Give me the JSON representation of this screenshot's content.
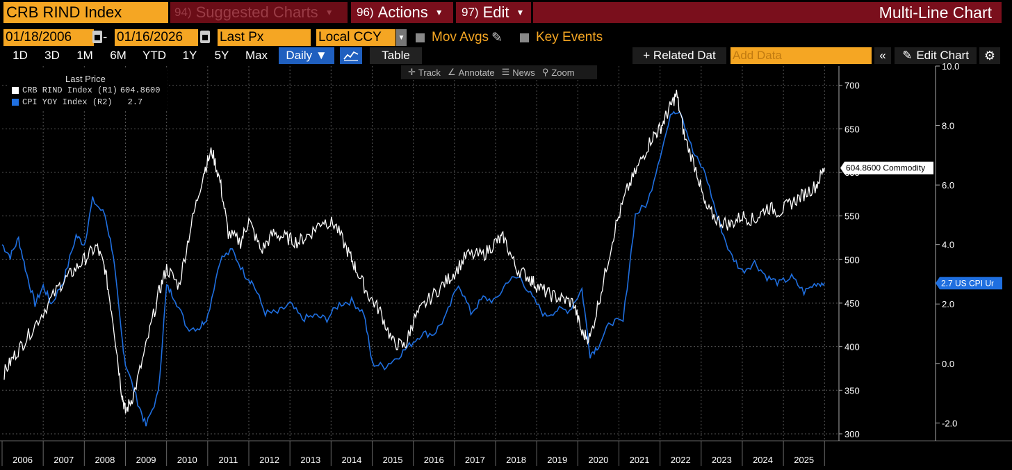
{
  "header": {
    "ticker": "CRB RIND Index",
    "suggested_num": "94)",
    "suggested_label": "Suggested Charts",
    "actions_num": "96)",
    "actions_label": "Actions",
    "edit_num": "97)",
    "edit_label": "Edit",
    "title": "Multi-Line Chart"
  },
  "controls": {
    "start_date": "01/18/2006",
    "dash": "-",
    "end_date": "01/16/2026",
    "field": "Last Px",
    "currency": "Local CCY",
    "mov_avgs": "Mov Avgs",
    "key_events": "Key Events"
  },
  "timeframes": [
    "1D",
    "3D",
    "1M",
    "6M",
    "YTD",
    "1Y",
    "5Y",
    "Max"
  ],
  "toolbar": {
    "daily": "Daily ▼",
    "table": "Table",
    "related": "+ Related Dat",
    "add_data_placeholder": "Add Data",
    "collapse": "«",
    "edit_chart": "Edit Chart",
    "gear": "⚙"
  },
  "tools": {
    "track": "Track",
    "annotate": "Annotate",
    "news": "News",
    "zoom": "Zoom"
  },
  "legend": {
    "title": "Last Price",
    "rows": [
      {
        "label": "CRB RIND Index  (R1)",
        "value": "604.8600",
        "color": "#ffffff"
      },
      {
        "label": "CPI YOY Index  (R2)",
        "value": "2.7",
        "color": "#1f6fe0"
      }
    ]
  },
  "chart_data": {
    "type": "line",
    "x_axis_years": [
      "2006",
      "2007",
      "2008",
      "2009",
      "2010",
      "2011",
      "2012",
      "2013",
      "2014",
      "2015",
      "2016",
      "2017",
      "2018",
      "2019",
      "2020",
      "2021",
      "2022",
      "2023",
      "2024",
      "2025"
    ],
    "y_left_range": [
      292,
      722
    ],
    "y_left_ticks": [
      "300",
      "350",
      "400",
      "450",
      "500",
      "550",
      "600",
      "650",
      "700"
    ],
    "y_right_range": [
      -2.6,
      10.0
    ],
    "y_right_ticks": [
      "-2.0",
      "0.0",
      "2.0",
      "4.0",
      "6.0",
      "8.0",
      "10.0"
    ],
    "series": [
      {
        "name": "CRB RIND Index",
        "color": "#ffffff",
        "last_label": "604.8600 Commodity",
        "x": [
          2006.05,
          2006.3,
          2006.6,
          2007.0,
          2007.4,
          2007.7,
          2008.0,
          2008.3,
          2008.5,
          2008.7,
          2008.9,
          2009.0,
          2009.2,
          2009.5,
          2009.8,
          2010.0,
          2010.3,
          2010.6,
          2010.9,
          2011.1,
          2011.3,
          2011.5,
          2011.8,
          2012.0,
          2012.3,
          2012.6,
          2012.9,
          2013.2,
          2013.5,
          2013.8,
          2014.1,
          2014.4,
          2014.6,
          2014.9,
          2015.2,
          2015.5,
          2015.8,
          2016.0,
          2016.3,
          2016.7,
          2017.0,
          2017.3,
          2017.7,
          2018.0,
          2018.2,
          2018.5,
          2018.8,
          2019.0,
          2019.3,
          2019.6,
          2019.9,
          2020.1,
          2020.3,
          2020.6,
          2020.9,
          2021.2,
          2021.5,
          2021.8,
          2022.0,
          2022.2,
          2022.4,
          2022.6,
          2022.9,
          2023.1,
          2023.4,
          2023.7,
          2024.0,
          2024.3,
          2024.6,
          2024.9,
          2025.2,
          2025.5,
          2025.8,
          2026.0
        ],
        "values": [
          370,
          390,
          410,
          440,
          470,
          485,
          500,
          515,
          490,
          430,
          350,
          325,
          345,
          400,
          460,
          490,
          470,
          540,
          600,
          625,
          590,
          530,
          520,
          545,
          510,
          530,
          525,
          520,
          530,
          545,
          540,
          510,
          490,
          460,
          440,
          405,
          400,
          430,
          450,
          470,
          485,
          505,
          505,
          520,
          525,
          490,
          480,
          470,
          460,
          455,
          450,
          415,
          410,
          470,
          535,
          580,
          610,
          640,
          650,
          670,
          690,
          640,
          600,
          560,
          545,
          540,
          550,
          545,
          560,
          555,
          565,
          575,
          585,
          605
        ]
      },
      {
        "name": "CPI YOY Index",
        "color": "#1f6fe0",
        "last_label": "2.7 US CPI Ur",
        "x": [
          2006.0,
          2006.2,
          2006.4,
          2006.6,
          2006.8,
          2007.0,
          2007.2,
          2007.5,
          2007.8,
          2008.0,
          2008.2,
          2008.5,
          2008.7,
          2008.9,
          2009.0,
          2009.3,
          2009.5,
          2009.8,
          2010.0,
          2010.2,
          2010.5,
          2010.8,
          2011.0,
          2011.3,
          2011.6,
          2011.9,
          2012.1,
          2012.4,
          2012.7,
          2013.0,
          2013.3,
          2013.6,
          2013.9,
          2014.2,
          2014.5,
          2014.8,
          2015.0,
          2015.3,
          2015.6,
          2015.9,
          2016.2,
          2016.5,
          2016.8,
          2017.1,
          2017.4,
          2017.7,
          2018.0,
          2018.3,
          2018.6,
          2018.9,
          2019.2,
          2019.5,
          2019.8,
          2020.1,
          2020.3,
          2020.5,
          2020.8,
          2021.1,
          2021.4,
          2021.7,
          2022.0,
          2022.3,
          2022.5,
          2022.8,
          2023.1,
          2023.4,
          2023.7,
          2024.0,
          2024.3,
          2024.6,
          2024.9,
          2025.2,
          2025.5,
          2025.8,
          2026.0
        ],
        "values": [
          4.0,
          3.6,
          4.2,
          3.0,
          2.0,
          2.6,
          2.0,
          2.8,
          4.3,
          4.0,
          5.5,
          5.0,
          3.7,
          1.0,
          0.0,
          -1.3,
          -2.1,
          -1.0,
          2.6,
          2.2,
          1.2,
          1.2,
          1.6,
          3.5,
          3.8,
          3.0,
          2.7,
          1.7,
          1.7,
          2.0,
          1.5,
          1.6,
          1.5,
          2.0,
          2.1,
          1.7,
          0.0,
          -0.1,
          0.2,
          0.6,
          1.0,
          1.0,
          1.6,
          2.7,
          1.7,
          2.2,
          2.1,
          2.8,
          2.9,
          2.2,
          1.6,
          1.8,
          1.8,
          2.5,
          0.3,
          0.6,
          1.4,
          1.4,
          5.0,
          5.4,
          7.0,
          8.5,
          8.5,
          7.1,
          6.4,
          4.9,
          3.7,
          3.1,
          3.4,
          2.9,
          2.7,
          2.9,
          2.4,
          2.7,
          2.7
        ]
      }
    ]
  }
}
